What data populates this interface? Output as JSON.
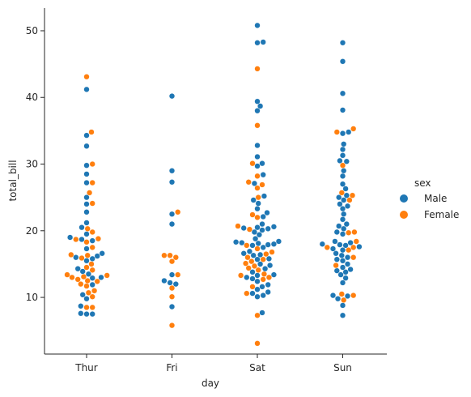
{
  "chart_data": {
    "type": "scatter",
    "subtype": "swarm",
    "xlabel": "day",
    "ylabel": "total_bill",
    "categories": [
      "Thur",
      "Fri",
      "Sat",
      "Sun"
    ],
    "ylim": [
      1.5,
      53.4
    ],
    "yticks": [
      10,
      20,
      30,
      40,
      50
    ],
    "legend": {
      "title": "sex",
      "placement": "right"
    },
    "series": [
      {
        "name": "Male",
        "color": "#1f77b4",
        "values": {
          "Thur": [
            41.2,
            34.3,
            32.7,
            29.8,
            28.5,
            27.2,
            25.0,
            24.0,
            22.8,
            21.2,
            20.5,
            19.5,
            19.0,
            18.7,
            18.5,
            17.3,
            16.6,
            16.2,
            16.0,
            15.8,
            15.5,
            14.3,
            13.9,
            13.5,
            13.0,
            12.9,
            11.9,
            10.4,
            9.8,
            8.7,
            7.5,
            7.6,
            7.5
          ],
          "Fri": [
            40.2,
            29.0,
            27.3,
            22.5,
            21.0,
            13.4,
            12.5,
            12.2,
            12.0,
            8.6
          ],
          "Sat": [
            50.8,
            48.3,
            48.2,
            39.4,
            38.7,
            38.0,
            32.8,
            31.1,
            30.1,
            29.7,
            28.4,
            27.1,
            25.2,
            24.6,
            24.1,
            23.3,
            22.7,
            22.1,
            21.0,
            20.6,
            20.5,
            20.4,
            20.3,
            20.1,
            19.8,
            19.4,
            18.8,
            18.4,
            18.3,
            18.2,
            18.1,
            18.0,
            17.9,
            17.8,
            17.5,
            16.9,
            16.6,
            16.4,
            16.3,
            15.8,
            15.7,
            15.0,
            14.8,
            14.3,
            13.8,
            13.4,
            13.3,
            13.0,
            12.8,
            12.4,
            11.9,
            11.6,
            11.2,
            10.8,
            10.6,
            10.3,
            10.1,
            7.7
          ],
          "Sun": [
            48.2,
            45.4,
            40.6,
            38.1,
            34.8,
            34.6,
            33.0,
            32.2,
            31.3,
            30.5,
            30.4,
            29.0,
            28.2,
            27.0,
            26.3,
            25.3,
            25.0,
            24.6,
            24.0,
            23.7,
            23.3,
            22.5,
            21.7,
            21.0,
            20.7,
            20.3,
            19.8,
            19.5,
            18.4,
            18.2,
            18.0,
            17.9,
            17.8,
            17.6,
            17.3,
            17.1,
            16.6,
            16.3,
            16.0,
            15.7,
            15.5,
            15.0,
            14.5,
            14.2,
            14.0,
            13.8,
            13.4,
            12.9,
            12.2,
            10.3,
            10.2,
            9.8,
            8.8,
            7.3
          ]
        }
      },
      {
        "name": "Female",
        "color": "#ff7f0e",
        "values": {
          "Thur": [
            43.1,
            34.8,
            30.0,
            27.2,
            25.7,
            24.1,
            20.3,
            19.8,
            18.8,
            18.7,
            18.3,
            17.5,
            16.4,
            16.3,
            15.9,
            15.0,
            14.5,
            14.1,
            13.4,
            13.3,
            13.1,
            13.0,
            12.7,
            12.5,
            12.4,
            12.0,
            11.7,
            11.0,
            10.7,
            10.1,
            8.5,
            8.5
          ],
          "Fri": [
            22.8,
            16.3,
            16.3,
            16.0,
            15.4,
            13.4,
            11.4,
            10.1,
            5.8
          ],
          "Sat": [
            44.3,
            35.8,
            30.1,
            28.2,
            27.3,
            26.9,
            26.4,
            25.0,
            22.4,
            22.0,
            20.7,
            20.2,
            17.8,
            17.3,
            16.8,
            16.5,
            16.0,
            15.7,
            15.4,
            15.1,
            14.7,
            14.4,
            14.1,
            13.5,
            13.3,
            13.0,
            12.7,
            11.6,
            10.6,
            7.3,
            3.1
          ],
          "Sun": [
            35.3,
            34.8,
            29.8,
            25.7,
            25.3,
            24.6,
            19.8,
            19.7,
            18.4,
            17.5,
            17.5,
            17.1,
            16.0,
            14.8,
            10.5,
            10.3,
            9.6
          ]
        }
      }
    ]
  }
}
